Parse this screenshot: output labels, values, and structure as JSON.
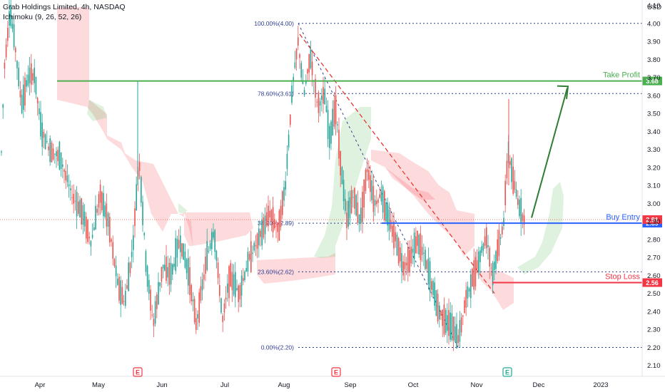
{
  "header": {
    "title": "Grab Holdings Limited, 4h, NASDAQ",
    "indicator": "Ichimoku (9, 26, 52, 26)"
  },
  "chart_data": {
    "type": "candlestick",
    "currency": "USD",
    "ylim": [
      2.05,
      4.15
    ],
    "y_ticks": [
      "4.10",
      "4.00",
      "3.90",
      "3.80",
      "3.70",
      "3.60",
      "3.50",
      "3.40",
      "3.30",
      "3.20",
      "3.10",
      "3.00",
      "2.90",
      "2.80",
      "2.70",
      "2.60",
      "2.50",
      "2.40",
      "2.30",
      "2.20",
      "2.10"
    ],
    "x_ticks": [
      "Apr",
      "May",
      "Jun",
      "Jul",
      "Aug",
      "Sep",
      "Oct",
      "Nov",
      "Dec",
      "2023"
    ],
    "fibonacci": [
      {
        "label": "100.00%(4.00)",
        "value": 4.0
      },
      {
        "label": "78.60%(3.61)",
        "value": 3.61
      },
      {
        "label": "38.20%(2.89)",
        "value": 2.89
      },
      {
        "label": "23.60%(2.62)",
        "value": 2.62
      },
      {
        "label": "0.00%(2.20)",
        "value": 2.2
      }
    ],
    "levels": [
      {
        "name": "Take Profit",
        "value": 3.68,
        "badge": "3.68",
        "color": "#4caf50"
      },
      {
        "name": "Buy Entry",
        "value": 2.89,
        "badge": "2.89",
        "color": "#2962ff"
      },
      {
        "name": "Stop Loss",
        "value": 2.56,
        "badge": "2.56",
        "color": "#f23645"
      }
    ],
    "last_price": {
      "value": 2.91,
      "badge": "2.91"
    },
    "earnings_markers": [
      "E",
      "E",
      "E"
    ]
  }
}
